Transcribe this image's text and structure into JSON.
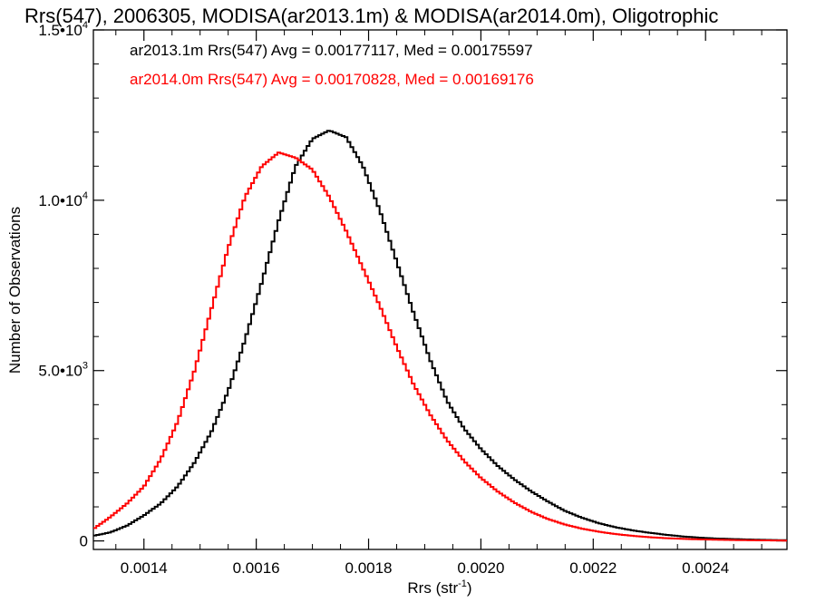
{
  "chart_data": {
    "type": "line",
    "title": "Rrs(547), 2006305, MODISA(ar2013.1m) & MODISA(ar2014.0m), Oligotrophic",
    "xlabel": "Rrs (str",
    "xlabel_sup": "-1",
    "xlabel_end": ")",
    "ylabel": "Number of Observations",
    "xlim": [
      0.00131,
      0.002545
    ],
    "ylim": [
      -250,
      15000
    ],
    "x_ticks": [
      {
        "value": 0.0014,
        "label": "0.0014"
      },
      {
        "value": 0.0016,
        "label": "0.0016"
      },
      {
        "value": 0.0018,
        "label": "0.0018"
      },
      {
        "value": 0.002,
        "label": "0.0020"
      },
      {
        "value": 0.0022,
        "label": "0.0022"
      },
      {
        "value": 0.0024,
        "label": "0.0024"
      }
    ],
    "y_ticks": [
      {
        "value": 0,
        "label": "0",
        "sup": ""
      },
      {
        "value": 5000,
        "label": "5.0•10",
        "sup": "3"
      },
      {
        "value": 10000,
        "label": "1.0•10",
        "sup": "4"
      },
      {
        "value": 15000,
        "label": "1.5•10",
        "sup": "4"
      }
    ],
    "series": [
      {
        "name": "ar2013.1m",
        "legend": "ar2013.1m Rrs(547) Avg = 0.00177117, Med = 0.00175597",
        "color": "#000000",
        "x": [
          0.00131,
          0.00134,
          0.00137,
          0.0014,
          0.00143,
          0.00146,
          0.00149,
          0.00152,
          0.00155,
          0.00158,
          0.00161,
          0.00164,
          0.00167,
          0.0017,
          0.00173,
          0.00176,
          0.00179,
          0.00182,
          0.00185,
          0.00188,
          0.00191,
          0.00194,
          0.00197,
          0.002,
          0.00203,
          0.00206,
          0.00209,
          0.00212,
          0.00215,
          0.00218,
          0.00221,
          0.00224,
          0.00227,
          0.0023,
          0.00233,
          0.00236,
          0.00239,
          0.00242,
          0.00245,
          0.00248,
          0.00251,
          0.002545
        ],
        "values": [
          150,
          250,
          450,
          750,
          1100,
          1600,
          2300,
          3200,
          4400,
          5900,
          7600,
          9400,
          11000,
          11800,
          12050,
          11850,
          11000,
          9700,
          8200,
          6700,
          5300,
          4100,
          3300,
          2700,
          2200,
          1800,
          1450,
          1150,
          880,
          680,
          520,
          400,
          310,
          240,
          180,
          130,
          95,
          70,
          55,
          40,
          30,
          20
        ]
      },
      {
        "name": "ar2014.0m",
        "legend": "ar2014.0m Rrs(547) Avg = 0.00170828, Med = 0.00169176",
        "color": "#ff0000",
        "x": [
          0.00131,
          0.00134,
          0.00137,
          0.0014,
          0.00143,
          0.00146,
          0.00149,
          0.00152,
          0.00155,
          0.00158,
          0.00161,
          0.00164,
          0.00167,
          0.0017,
          0.00173,
          0.00176,
          0.00179,
          0.00182,
          0.00185,
          0.00188,
          0.00191,
          0.00194,
          0.00197,
          0.002,
          0.00203,
          0.00206,
          0.00209,
          0.00212,
          0.00215,
          0.00218,
          0.00221,
          0.00224,
          0.00227,
          0.0023,
          0.00233,
          0.00236,
          0.00239,
          0.00242,
          0.00245,
          0.00248,
          0.00251,
          0.002545
        ],
        "values": [
          350,
          700,
          1100,
          1600,
          2400,
          3500,
          5000,
          6800,
          8600,
          10100,
          11000,
          11400,
          11250,
          10900,
          10100,
          9100,
          8000,
          6900,
          5700,
          4600,
          3700,
          2950,
          2350,
          1850,
          1450,
          1120,
          850,
          640,
          480,
          360,
          270,
          200,
          150,
          110,
          80,
          60,
          45,
          35,
          25,
          20,
          15,
          10
        ]
      }
    ]
  }
}
